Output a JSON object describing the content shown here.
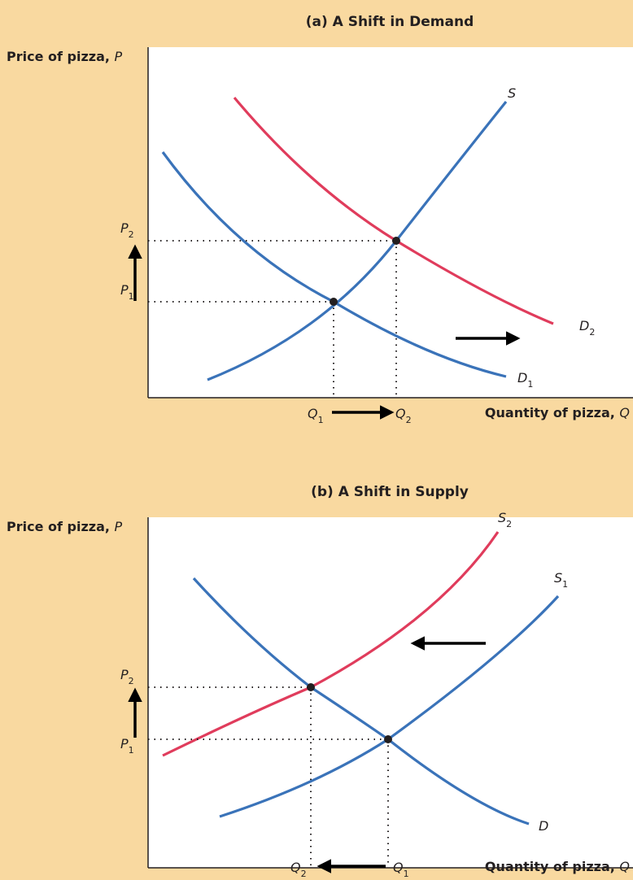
{
  "chart_data": [
    {
      "type": "line",
      "title": "(a) A Shift in Demand",
      "ylabel": "Price of pizza, P",
      "xlabel": "Quantity of pizza, Q",
      "series": [
        {
          "name": "S",
          "color": "#3a73b9",
          "points": [
            [
              1.2,
              0.6
            ],
            [
              3.4,
              2.5
            ],
            [
              5.6,
              5.7
            ]
          ]
        },
        {
          "name": "D1",
          "color": "#3a73b9",
          "points": [
            [
              0.3,
              4.3
            ],
            [
              3.4,
              2.5
            ],
            [
              6.2,
              0.7
            ]
          ]
        },
        {
          "name": "D2",
          "color": "#e03c5c",
          "points": [
            [
              1.5,
              5.5
            ],
            [
              4.3,
              3.4
            ],
            [
              7.4,
              1.5
            ]
          ]
        }
      ],
      "equilibria": [
        {
          "label_p": "P1",
          "label_q": "Q1",
          "q": 3.4,
          "p": 2.5
        },
        {
          "label_p": "P2",
          "label_q": "Q2",
          "q": 4.3,
          "p": 3.4
        }
      ],
      "shift_direction": "right"
    },
    {
      "type": "line",
      "title": "(b) A Shift in Supply",
      "ylabel": "Price of pizza, P",
      "xlabel": "Quantity of pizza, Q",
      "series": [
        {
          "name": "S1",
          "color": "#3a73b9",
          "points": [
            [
              1.2,
              0.7
            ],
            [
              4.5,
              2.2
            ],
            [
              7.2,
              4.6
            ]
          ]
        },
        {
          "name": "S2",
          "color": "#e03c5c",
          "points": [
            [
              0.2,
              2.0
            ],
            [
              3.3,
              3.1
            ],
            [
              6.0,
              5.7
            ]
          ]
        },
        {
          "name": "D",
          "color": "#3a73b9",
          "points": [
            [
              0.7,
              5.0
            ],
            [
              3.3,
              3.1
            ],
            [
              6.2,
              0.9
            ]
          ]
        }
      ],
      "equilibria": [
        {
          "label_p": "P1",
          "label_q": "Q1",
          "q": 4.5,
          "p": 2.2
        },
        {
          "label_p": "P2",
          "label_q": "Q2",
          "q": 3.3,
          "p": 3.1
        }
      ],
      "shift_direction": "left"
    }
  ],
  "labels": {
    "a": {
      "S": "S",
      "D1": "D",
      "D1_sub": "1",
      "D2": "D",
      "D2_sub": "2",
      "P": "P",
      "P1_sub": "1",
      "P2_sub": "2",
      "Q": "Q",
      "Q1_sub": "1",
      "Q2_sub": "2"
    },
    "b": {
      "S1": "S",
      "S1_sub": "1",
      "S2": "S",
      "S2_sub": "2",
      "D": "D",
      "P": "P",
      "P1_sub": "1",
      "P2_sub": "2",
      "Q": "Q",
      "Q1_sub": "1",
      "Q2_sub": "2"
    }
  },
  "text": {
    "title_a": "(a) A Shift in Demand",
    "title_b": "(b) A Shift in Supply",
    "ylabel_prefix": "Price of pizza, ",
    "ylabel_var": "P",
    "xlabel_prefix": "Quantity of pizza, ",
    "xlabel_var": "Q"
  }
}
